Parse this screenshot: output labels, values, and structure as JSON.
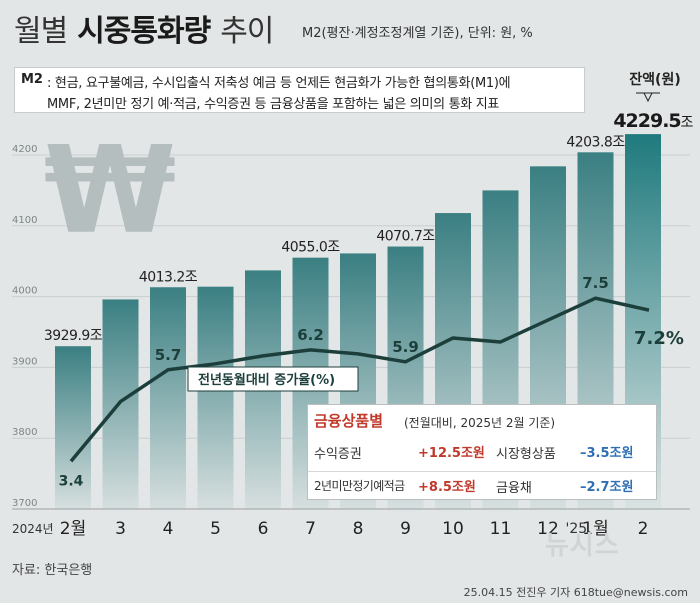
{
  "header": {
    "title_part1": "월별",
    "title_part2": "시중통화량",
    "title_part3": "추이",
    "subtitle": "M2(평잔·계정조정계열 기준), 단위: 원, %"
  },
  "m2_note": {
    "label": "M2",
    "line1": ": 현금, 요구불예금, 수시입출식 저축성 예금 등 언제든 현금화가 가능한 협의통화(M1)에",
    "line2": "MMF, 2년미만 정기 예·적금, 수익증권 등 금융상품을 포함하는 넓은 의미의 통화 지표"
  },
  "chart_data": {
    "type": "bar",
    "categories": [
      "2월",
      "3",
      "4",
      "5",
      "6",
      "7",
      "8",
      "9",
      "10",
      "11",
      "12",
      "1월",
      "2"
    ],
    "year_labels": {
      "0": "2024년",
      "11": "'25."
    },
    "y_ticks": [
      3700,
      3800,
      3900,
      4000,
      4100,
      4200
    ],
    "ylim": [
      3700,
      4245
    ],
    "bar_series": {
      "name": "잔액(원)",
      "values": [
        3929.9,
        3996,
        4013.2,
        4014,
        4037,
        4055.0,
        4061,
        4070.7,
        4118,
        4150,
        4184,
        4203.8,
        4229.5
      ]
    },
    "bar_labels": {
      "0": "3929.9조",
      "2": "4013.2조",
      "5": "4055.0조",
      "7": "4070.7조",
      "11": "4203.8조",
      "12": "4229.5"
    },
    "bar_unit_suffix": "조",
    "line_series": {
      "name": "전년동월대비 증가율(%)",
      "values": [
        3.4,
        4.9,
        5.7,
        5.85,
        6.05,
        6.2,
        6.1,
        5.9,
        6.5,
        6.4,
        6.95,
        7.5,
        7.2
      ]
    },
    "line_labels": {
      "0": "3.4",
      "2": "5.7",
      "5": "6.2",
      "7": "5.9",
      "11": "7.5",
      "12": "7.2%"
    },
    "line_range": [
      2.2,
      11.1
    ],
    "legend_balance": "잔액(원)",
    "currency_symbol": "₩",
    "colors": {
      "bar": "#4b9496",
      "bar_top": "#3a7f82",
      "last_bar": "#1f7a7d",
      "line": "#1c3f3c"
    }
  },
  "financial_products": {
    "title": "금융상품별",
    "note": "(전월대비, 2025년 2월 기준)",
    "rows": [
      [
        {
          "name": "수익증권",
          "value": "+12.5조원"
        },
        {
          "name": "시장형상품",
          "value": "–3.5조원"
        }
      ],
      [
        {
          "name": "2년미만정기예적금",
          "value": "+8.5조원"
        },
        {
          "name": "금융채",
          "value": "–2.7조원"
        }
      ]
    ]
  },
  "source": "자료: 한국은행",
  "credit": "25.04.15 전진우 기자 618tue@newsis.com",
  "watermark": "뉴시스"
}
